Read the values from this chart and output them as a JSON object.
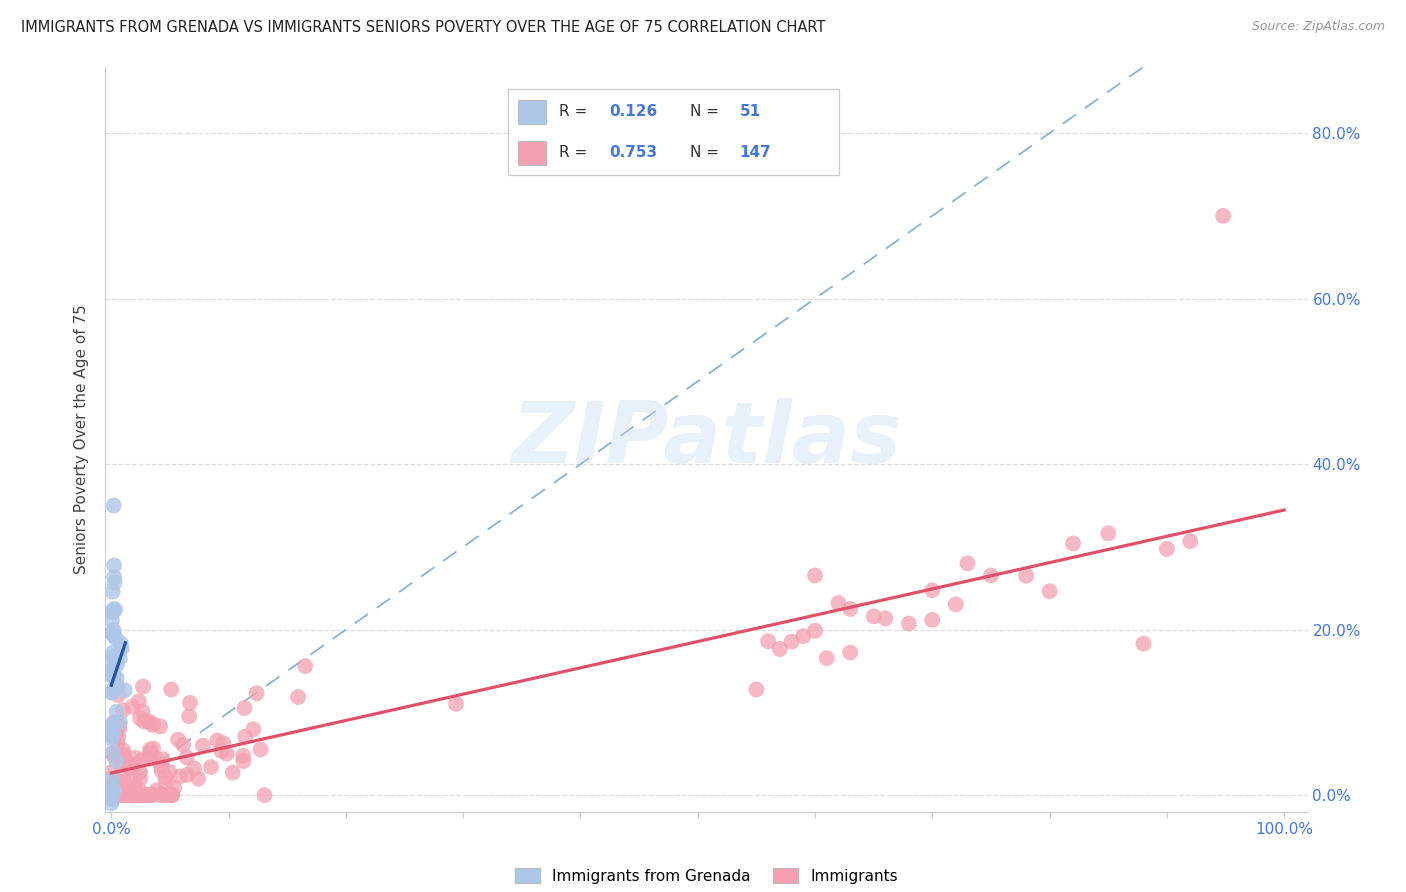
{
  "title": "IMMIGRANTS FROM GRENADA VS IMMIGRANTS SENIORS POVERTY OVER THE AGE OF 75 CORRELATION CHART",
  "source": "Source: ZipAtlas.com",
  "ylabel": "Seniors Poverty Over the Age of 75",
  "legend_label1": "Immigrants from Grenada",
  "legend_label2": "Immigrants",
  "R1": 0.126,
  "N1": 51,
  "R2": 0.753,
  "N2": 147,
  "color1_scatter": "#aec6e8",
  "color2_scatter": "#f4a0b0",
  "color1_line": "#2255aa",
  "color2_line": "#e0506a",
  "diagonal_color": "#7aaad0",
  "blue_text": "#4477dd",
  "grid_color": "#dddddd",
  "title_color": "#222222",
  "source_color": "#999999",
  "watermark_color": "#c5d8f0",
  "legend_text_color": "#333333",
  "yticks": [
    0.0,
    0.2,
    0.4,
    0.6,
    0.8
  ],
  "ylim_lo": -0.02,
  "ylim_hi": 0.88,
  "xlim_lo": -0.005,
  "xlim_hi": 1.02
}
